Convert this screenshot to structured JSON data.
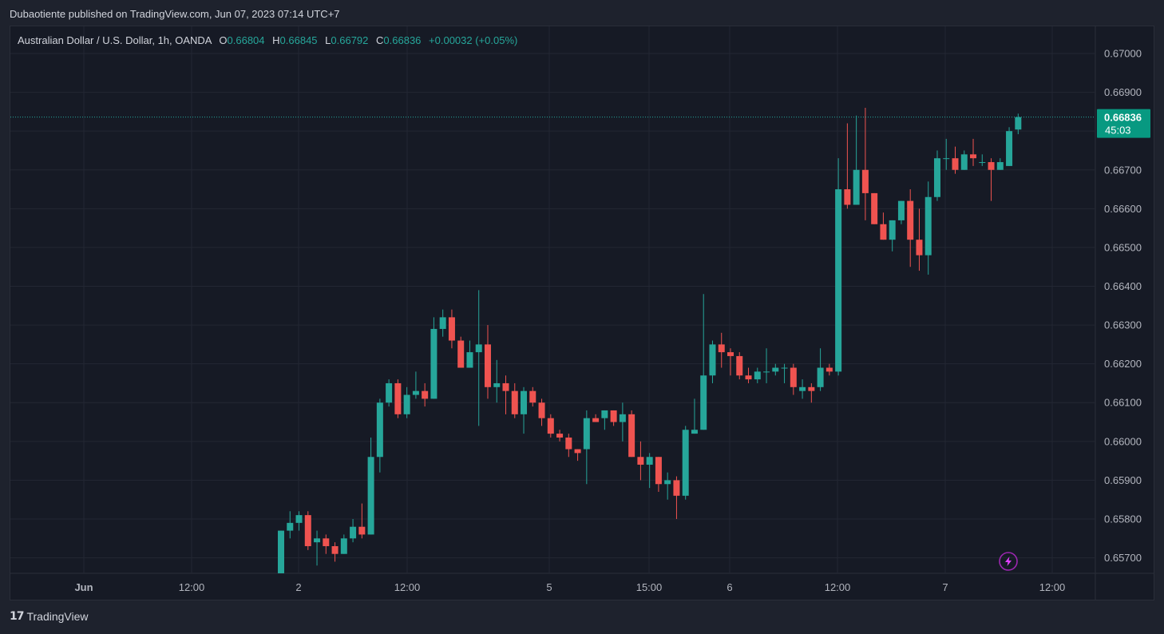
{
  "header": {
    "published": "Dubaotiente published on TradingView.com, Jun 07, 2023 07:14 UTC+7"
  },
  "legend": {
    "symbol": "Australian Dollar / U.S. Dollar, 1h, OANDA",
    "o_key": "O",
    "o_val": "0.66804",
    "h_key": "H",
    "h_val": "0.66845",
    "l_key": "L",
    "l_val": "0.66792",
    "c_key": "C",
    "c_val": "0.66836",
    "change": "+0.00032 (+0.05%)"
  },
  "price_tag": {
    "price": "0.66836",
    "countdown": "45:03"
  },
  "footer": {
    "brand": "TradingView",
    "mark": "17"
  },
  "colors": {
    "up": "#26a69a",
    "down": "#ef5350",
    "grid": "#232733",
    "bg": "#161a25",
    "text": "#d1d4dc"
  },
  "chart_data": {
    "type": "candlestick",
    "ylim": [
      0.6566,
      0.6707
    ],
    "y_ticks": [
      "0.67000",
      "0.66900",
      "0.66800",
      "0.66700",
      "0.66600",
      "0.66500",
      "0.66400",
      "0.66300",
      "0.66200",
      "0.66100",
      "0.66000",
      "0.65900",
      "0.65800",
      "0.65700"
    ],
    "x_ticks": [
      "Jun",
      "12:00",
      "2",
      "12:00",
      "5",
      "15:00",
      "6",
      "12:00",
      "7",
      "12:00"
    ],
    "last_price": 0.66836,
    "candles": [
      {
        "o": 0.6566,
        "h": 0.6577,
        "l": 0.6566,
        "c": 0.6577
      },
      {
        "o": 0.6577,
        "h": 0.6582,
        "l": 0.6575,
        "c": 0.6579
      },
      {
        "o": 0.6579,
        "h": 0.6582,
        "l": 0.6577,
        "c": 0.6581
      },
      {
        "o": 0.6581,
        "h": 0.6582,
        "l": 0.6572,
        "c": 0.6573
      },
      {
        "o": 0.6574,
        "h": 0.6577,
        "l": 0.6568,
        "c": 0.6575
      },
      {
        "o": 0.6575,
        "h": 0.6576,
        "l": 0.6571,
        "c": 0.6573
      },
      {
        "o": 0.6573,
        "h": 0.6574,
        "l": 0.6569,
        "c": 0.6571
      },
      {
        "o": 0.6571,
        "h": 0.6576,
        "l": 0.6571,
        "c": 0.6575
      },
      {
        "o": 0.6575,
        "h": 0.658,
        "l": 0.6574,
        "c": 0.6578
      },
      {
        "o": 0.6578,
        "h": 0.6584,
        "l": 0.6575,
        "c": 0.6576
      },
      {
        "o": 0.6576,
        "h": 0.6601,
        "l": 0.6576,
        "c": 0.6596
      },
      {
        "o": 0.6596,
        "h": 0.6611,
        "l": 0.6592,
        "c": 0.661
      },
      {
        "o": 0.661,
        "h": 0.6616,
        "l": 0.6609,
        "c": 0.6615
      },
      {
        "o": 0.6615,
        "h": 0.6616,
        "l": 0.6606,
        "c": 0.6607
      },
      {
        "o": 0.6607,
        "h": 0.6614,
        "l": 0.6606,
        "c": 0.6612
      },
      {
        "o": 0.6612,
        "h": 0.6618,
        "l": 0.6611,
        "c": 0.6613
      },
      {
        "o": 0.6613,
        "h": 0.6615,
        "l": 0.6609,
        "c": 0.6611
      },
      {
        "o": 0.6611,
        "h": 0.6632,
        "l": 0.6611,
        "c": 0.6629
      },
      {
        "o": 0.6629,
        "h": 0.6634,
        "l": 0.6627,
        "c": 0.6632
      },
      {
        "o": 0.6632,
        "h": 0.6634,
        "l": 0.6624,
        "c": 0.6626
      },
      {
        "o": 0.6626,
        "h": 0.6627,
        "l": 0.6619,
        "c": 0.6619
      },
      {
        "o": 0.6619,
        "h": 0.6626,
        "l": 0.6619,
        "c": 0.6623
      },
      {
        "o": 0.6623,
        "h": 0.6639,
        "l": 0.6604,
        "c": 0.6625
      },
      {
        "o": 0.6625,
        "h": 0.663,
        "l": 0.6611,
        "c": 0.6614
      },
      {
        "o": 0.6614,
        "h": 0.6621,
        "l": 0.661,
        "c": 0.6615
      },
      {
        "o": 0.6615,
        "h": 0.6617,
        "l": 0.6607,
        "c": 0.6613
      },
      {
        "o": 0.6613,
        "h": 0.6615,
        "l": 0.6606,
        "c": 0.6607
      },
      {
        "o": 0.6607,
        "h": 0.6614,
        "l": 0.6602,
        "c": 0.6613
      },
      {
        "o": 0.6613,
        "h": 0.6614,
        "l": 0.6609,
        "c": 0.661
      },
      {
        "o": 0.661,
        "h": 0.6611,
        "l": 0.6604,
        "c": 0.6606
      },
      {
        "o": 0.6606,
        "h": 0.6607,
        "l": 0.6601,
        "c": 0.6602
      },
      {
        "o": 0.6602,
        "h": 0.6603,
        "l": 0.66,
        "c": 0.6601
      },
      {
        "o": 0.6601,
        "h": 0.6602,
        "l": 0.6596,
        "c": 0.6598
      },
      {
        "o": 0.6598,
        "h": 0.6598,
        "l": 0.6595,
        "c": 0.6597
      },
      {
        "o": 0.6598,
        "h": 0.6608,
        "l": 0.6589,
        "c": 0.6606
      },
      {
        "o": 0.6606,
        "h": 0.6607,
        "l": 0.6605,
        "c": 0.6605
      },
      {
        "o": 0.6606,
        "h": 0.6608,
        "l": 0.6603,
        "c": 0.6608
      },
      {
        "o": 0.6608,
        "h": 0.6608,
        "l": 0.6604,
        "c": 0.6605
      },
      {
        "o": 0.6605,
        "h": 0.661,
        "l": 0.66,
        "c": 0.6607
      },
      {
        "o": 0.6607,
        "h": 0.6608,
        "l": 0.6596,
        "c": 0.6596
      },
      {
        "o": 0.6596,
        "h": 0.66,
        "l": 0.659,
        "c": 0.6594
      },
      {
        "o": 0.6594,
        "h": 0.6597,
        "l": 0.6588,
        "c": 0.6596
      },
      {
        "o": 0.6596,
        "h": 0.6596,
        "l": 0.6587,
        "c": 0.6589
      },
      {
        "o": 0.6589,
        "h": 0.6592,
        "l": 0.6585,
        "c": 0.659
      },
      {
        "o": 0.659,
        "h": 0.6591,
        "l": 0.658,
        "c": 0.6586
      },
      {
        "o": 0.6586,
        "h": 0.6604,
        "l": 0.6585,
        "c": 0.6603
      },
      {
        "o": 0.6602,
        "h": 0.6611,
        "l": 0.6602,
        "c": 0.6603
      },
      {
        "o": 0.6603,
        "h": 0.6638,
        "l": 0.6603,
        "c": 0.6617
      },
      {
        "o": 0.6617,
        "h": 0.6626,
        "l": 0.6615,
        "c": 0.6625
      },
      {
        "o": 0.6625,
        "h": 0.6628,
        "l": 0.6619,
        "c": 0.6623
      },
      {
        "o": 0.6623,
        "h": 0.6624,
        "l": 0.6617,
        "c": 0.6622
      },
      {
        "o": 0.6622,
        "h": 0.6623,
        "l": 0.6616,
        "c": 0.6617
      },
      {
        "o": 0.6617,
        "h": 0.6619,
        "l": 0.6615,
        "c": 0.6616
      },
      {
        "o": 0.6616,
        "h": 0.6619,
        "l": 0.6615,
        "c": 0.6618
      },
      {
        "o": 0.6618,
        "h": 0.6624,
        "l": 0.6615,
        "c": 0.6618
      },
      {
        "o": 0.6618,
        "h": 0.662,
        "l": 0.6617,
        "c": 0.6619
      },
      {
        "o": 0.6619,
        "h": 0.662,
        "l": 0.6615,
        "c": 0.6619
      },
      {
        "o": 0.6619,
        "h": 0.662,
        "l": 0.6612,
        "c": 0.6614
      },
      {
        "o": 0.6613,
        "h": 0.6616,
        "l": 0.6611,
        "c": 0.6614
      },
      {
        "o": 0.6614,
        "h": 0.6615,
        "l": 0.661,
        "c": 0.6613
      },
      {
        "o": 0.6614,
        "h": 0.6624,
        "l": 0.6613,
        "c": 0.6619
      },
      {
        "o": 0.6619,
        "h": 0.662,
        "l": 0.6617,
        "c": 0.6618
      },
      {
        "o": 0.6618,
        "h": 0.6673,
        "l": 0.6617,
        "c": 0.6665
      },
      {
        "o": 0.6665,
        "h": 0.6682,
        "l": 0.666,
        "c": 0.6661
      },
      {
        "o": 0.6661,
        "h": 0.6684,
        "l": 0.6661,
        "c": 0.667
      },
      {
        "o": 0.667,
        "h": 0.6686,
        "l": 0.6657,
        "c": 0.6664
      },
      {
        "o": 0.6664,
        "h": 0.6664,
        "l": 0.6656,
        "c": 0.6656
      },
      {
        "o": 0.6656,
        "h": 0.6659,
        "l": 0.6652,
        "c": 0.6652
      },
      {
        "o": 0.6652,
        "h": 0.6657,
        "l": 0.6649,
        "c": 0.6657
      },
      {
        "o": 0.6657,
        "h": 0.6662,
        "l": 0.6656,
        "c": 0.6662
      },
      {
        "o": 0.6662,
        "h": 0.6665,
        "l": 0.6645,
        "c": 0.6652
      },
      {
        "o": 0.6652,
        "h": 0.666,
        "l": 0.6644,
        "c": 0.6648
      },
      {
        "o": 0.6648,
        "h": 0.6667,
        "l": 0.6643,
        "c": 0.6663
      },
      {
        "o": 0.6663,
        "h": 0.6675,
        "l": 0.6662,
        "c": 0.6673
      },
      {
        "o": 0.6673,
        "h": 0.6678,
        "l": 0.667,
        "c": 0.6673
      },
      {
        "o": 0.6673,
        "h": 0.6676,
        "l": 0.6669,
        "c": 0.667
      },
      {
        "o": 0.667,
        "h": 0.6675,
        "l": 0.667,
        "c": 0.6674
      },
      {
        "o": 0.6674,
        "h": 0.6678,
        "l": 0.6671,
        "c": 0.6673
      },
      {
        "o": 0.6672,
        "h": 0.6674,
        "l": 0.6671,
        "c": 0.6672
      },
      {
        "o": 0.6672,
        "h": 0.6673,
        "l": 0.6662,
        "c": 0.667
      },
      {
        "o": 0.667,
        "h": 0.6673,
        "l": 0.667,
        "c": 0.6672
      },
      {
        "o": 0.6671,
        "h": 0.6681,
        "l": 0.6671,
        "c": 0.668
      },
      {
        "o": 0.66804,
        "h": 0.66845,
        "l": 0.66792,
        "c": 0.66836
      }
    ]
  }
}
